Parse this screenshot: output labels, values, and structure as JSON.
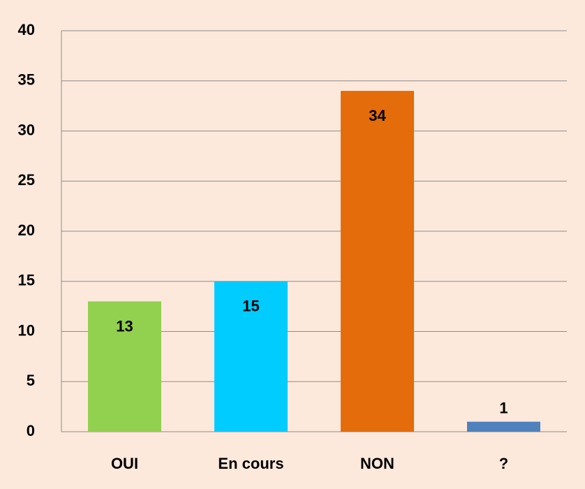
{
  "chart_data": {
    "type": "bar",
    "categories": [
      "OUI",
      "En cours",
      "NON",
      "?"
    ],
    "values": [
      13,
      15,
      34,
      1
    ],
    "colors": [
      "#92d050",
      "#00ccff",
      "#e46c0a",
      "#4f81bd"
    ],
    "ylim": [
      0,
      40
    ],
    "yticks": [
      0,
      5,
      10,
      15,
      20,
      25,
      30,
      35,
      40
    ],
    "grid": true
  }
}
